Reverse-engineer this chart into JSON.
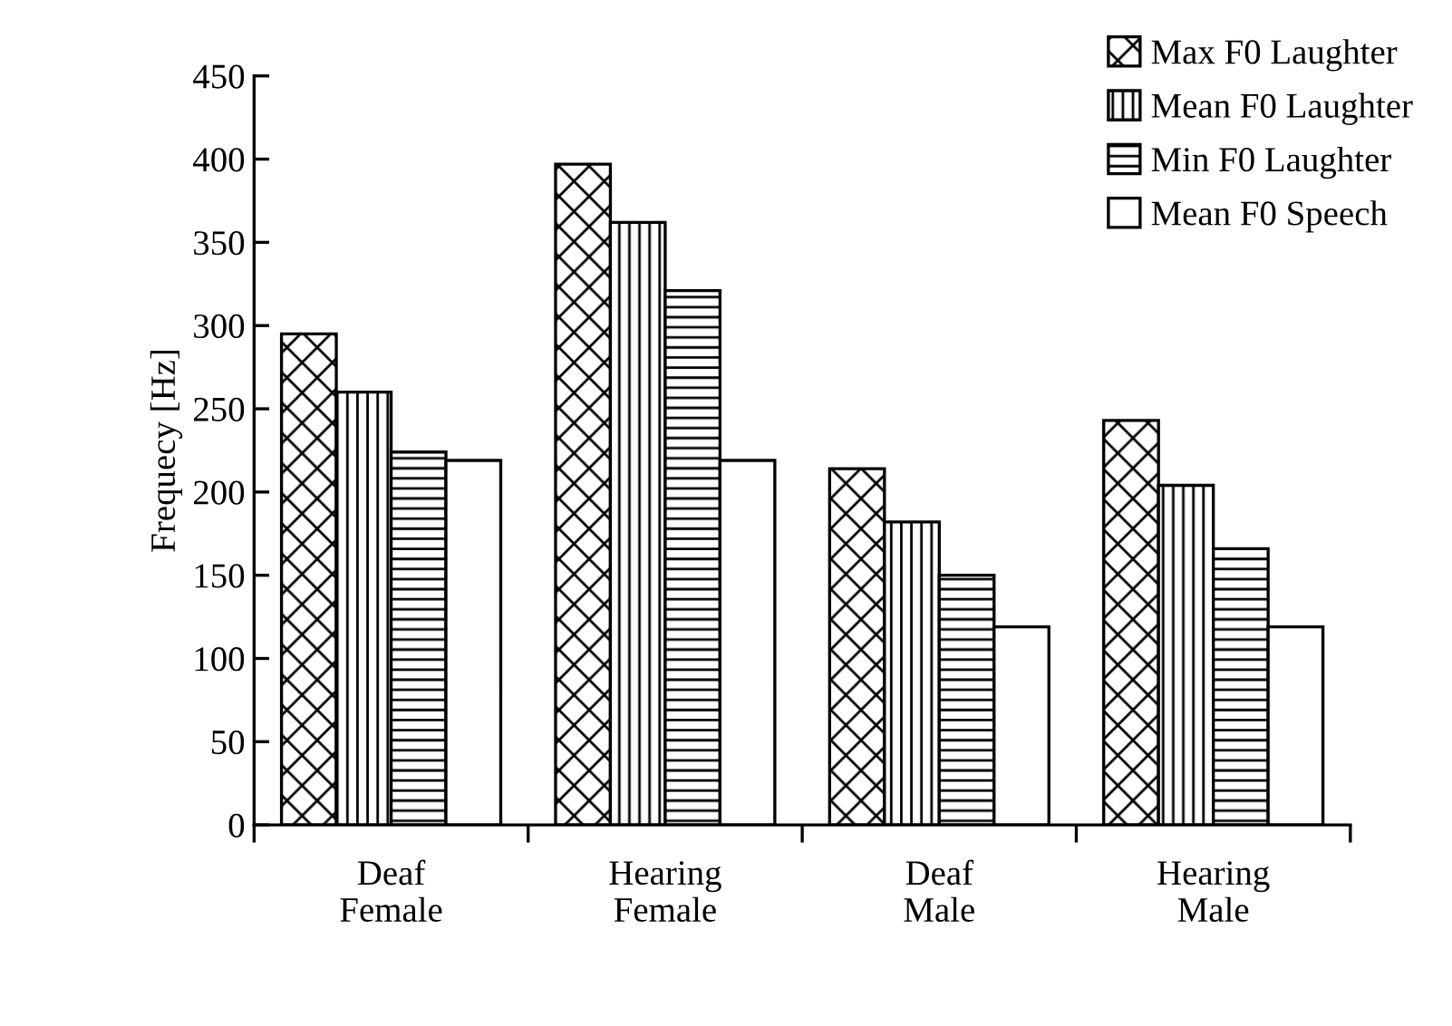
{
  "chart_data": {
    "type": "bar",
    "ylabel": "Frequecy [Hz]",
    "categories": [
      "Deaf\nFemale",
      "Hearing\nFemale",
      "Deaf\nMale",
      "Hearing\nMale"
    ],
    "series": [
      {
        "name": "Max F0 Laughter",
        "color": "#000000",
        "values": [
          295,
          397,
          214,
          243
        ]
      },
      {
        "name": "Mean F0 Laughter",
        "color": "#000000",
        "values": [
          260,
          362,
          182,
          204
        ]
      },
      {
        "name": "Min F0 Laughter",
        "color": "#000000",
        "values": [
          224,
          321,
          150,
          166
        ]
      },
      {
        "name": "Mean F0 Speech",
        "color": "#ffffff",
        "values": [
          219,
          219,
          119,
          119
        ]
      }
    ],
    "ylim": [
      0,
      450
    ],
    "yticks": [
      0,
      50,
      100,
      150,
      200,
      250,
      300,
      350,
      400,
      450
    ],
    "grid": false,
    "legend": "top right"
  }
}
